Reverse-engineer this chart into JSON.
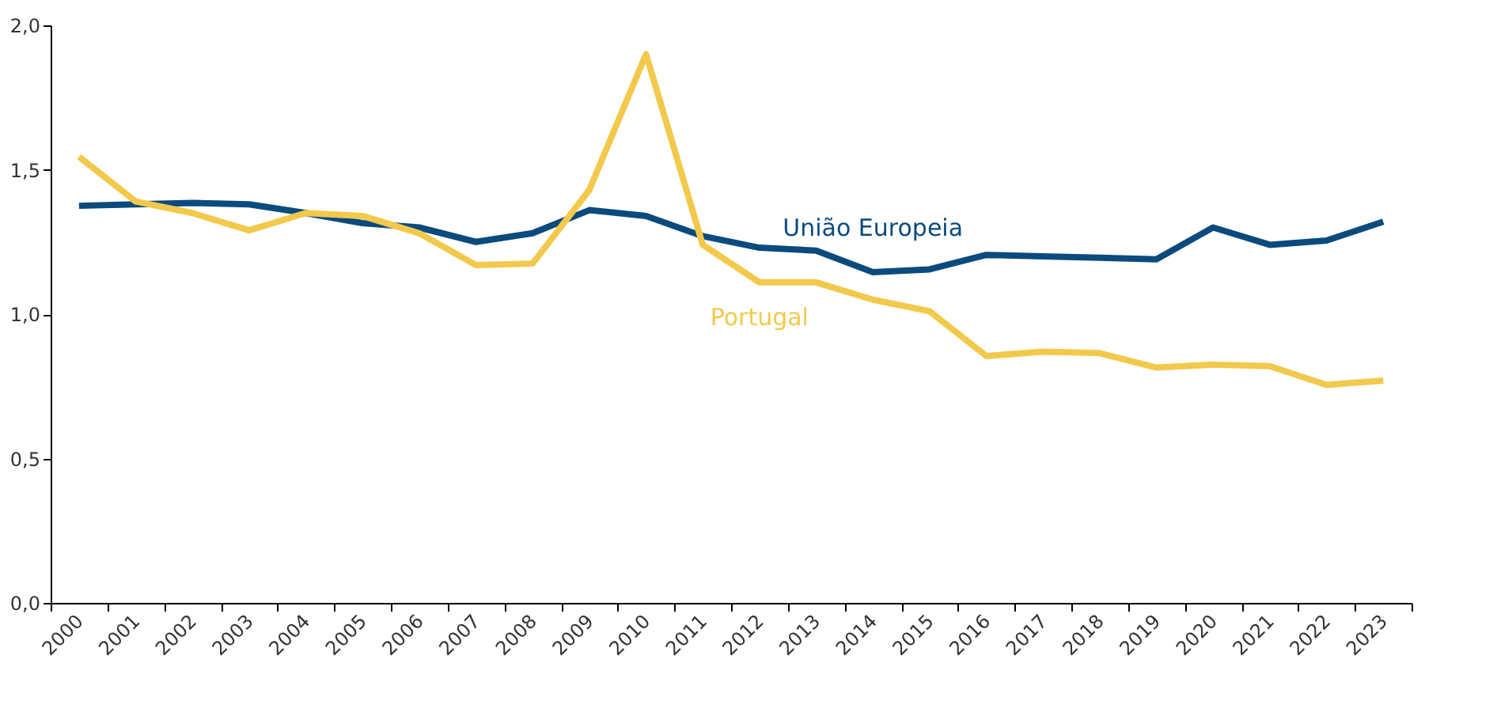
{
  "chart_data": {
    "type": "line",
    "categories": [
      "2000",
      "2001",
      "2002",
      "2003",
      "2004",
      "2005",
      "2006",
      "2007",
      "2008",
      "2009",
      "2010",
      "2011",
      "2012",
      "2013",
      "2014",
      "2015",
      "2016",
      "2017",
      "2018",
      "2019",
      "2020",
      "2021",
      "2022",
      "2023"
    ],
    "series": [
      {
        "name": "União Europeia",
        "color": "#0b4a7d",
        "values": [
          1.375,
          1.38,
          1.385,
          1.38,
          1.35,
          1.315,
          1.3,
          1.25,
          1.28,
          1.36,
          1.34,
          1.27,
          1.23,
          1.22,
          1.145,
          1.155,
          1.205,
          1.2,
          1.195,
          1.19,
          1.3,
          1.24,
          1.255,
          1.32
        ]
      },
      {
        "name": "Portugal",
        "color": "#f2c94c",
        "values": [
          1.545,
          1.39,
          1.35,
          1.29,
          1.35,
          1.34,
          1.28,
          1.17,
          1.175,
          1.43,
          1.9,
          1.24,
          1.11,
          1.11,
          1.05,
          1.01,
          0.855,
          0.87,
          0.865,
          0.815,
          0.825,
          0.82,
          0.755,
          0.77
        ]
      }
    ],
    "ylim": [
      0,
      2
    ],
    "yticks": [
      {
        "value": 0,
        "label": "0,0"
      },
      {
        "value": 0.5,
        "label": "0,5"
      },
      {
        "value": 1,
        "label": "1,0"
      },
      {
        "value": 1.5,
        "label": "1,5"
      },
      {
        "value": 2,
        "label": "2,0"
      }
    ],
    "grid": false,
    "legend": false,
    "marker": "none",
    "line_style": "solid"
  }
}
